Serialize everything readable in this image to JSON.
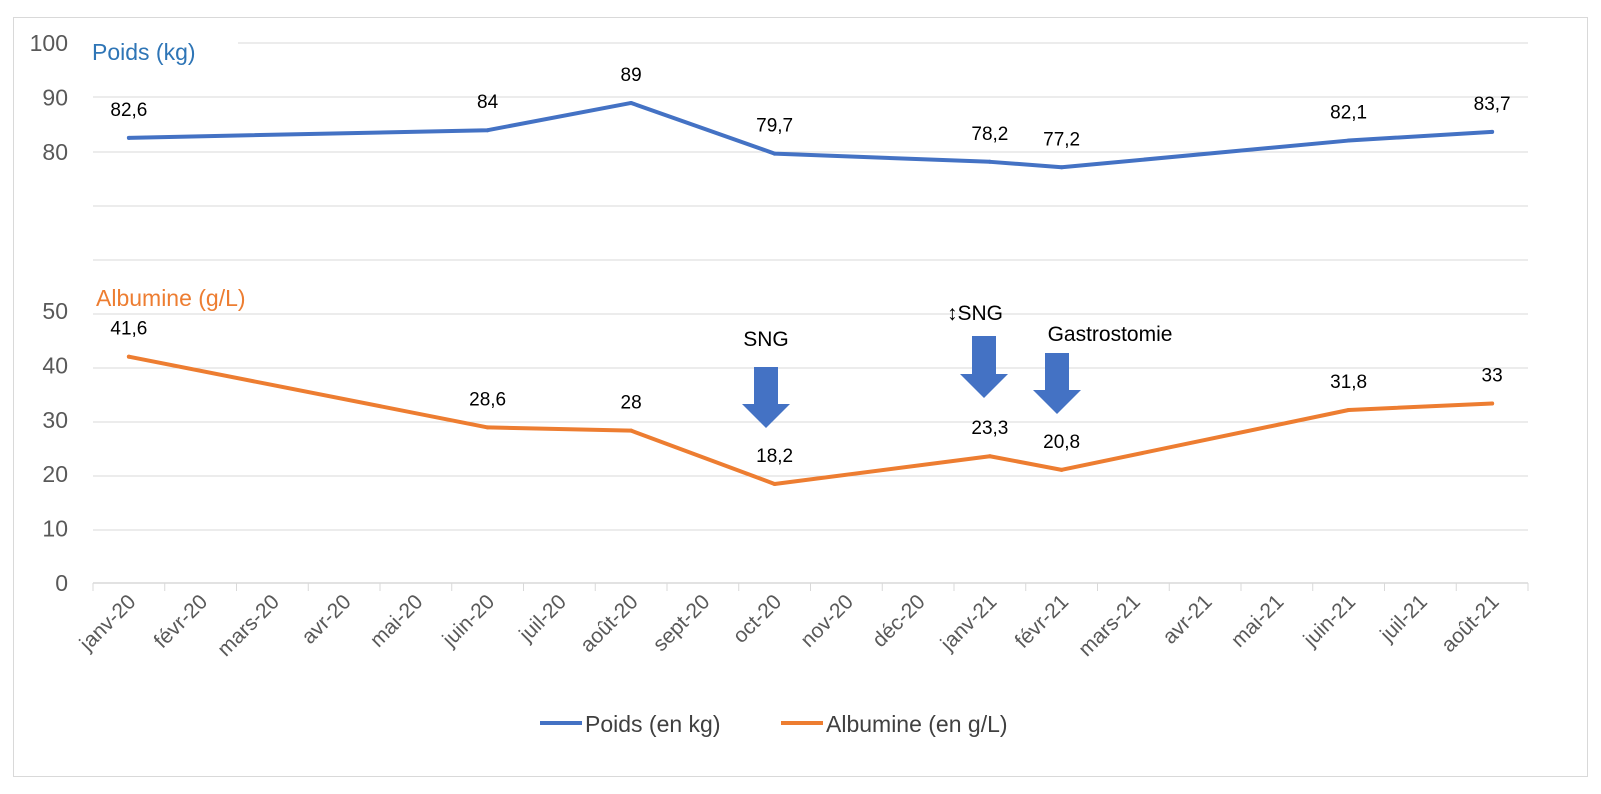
{
  "chart_data": {
    "type": "line",
    "categories": [
      "janv-20",
      "févr-20",
      "mars-20",
      "avr-20",
      "mai-20",
      "juin-20",
      "juil-20",
      "août-20",
      "sept-20",
      "oct-20",
      "nov-20",
      "déc-20",
      "janv-21",
      "févr-21",
      "mars-21",
      "avr-21",
      "mai-21",
      "juin-21",
      "juil-21",
      "août-21"
    ],
    "y_ticks": [
      0,
      10,
      20,
      30,
      40,
      50,
      80,
      90,
      100
    ],
    "series": [
      {
        "name": "Poids (en kg)",
        "axis_title": "Poids (kg)",
        "color": "#4472C4",
        "title_color": "#2E75B6",
        "points": [
          {
            "x": "janv-20",
            "value": 82.6,
            "label": "82,6"
          },
          {
            "x": "juin-20",
            "value": 84,
            "label": "84"
          },
          {
            "x": "août-20",
            "value": 89,
            "label": "89"
          },
          {
            "x": "oct-20",
            "value": 79.7,
            "label": "79,7"
          },
          {
            "x": "janv-21",
            "value": 78.2,
            "label": "78,2"
          },
          {
            "x": "févr-21",
            "value": 77.2,
            "label": "77,2"
          },
          {
            "x": "juin-21",
            "value": 82.1,
            "label": "82,1"
          },
          {
            "x": "août-21",
            "value": 83.7,
            "label": "83,7"
          }
        ]
      },
      {
        "name": "Albumine (en g/L)",
        "axis_title": "Albumine (g/L)",
        "color": "#ED7D31",
        "title_color": "#ED7D31",
        "points": [
          {
            "x": "janv-20",
            "value": 41.6,
            "label": "41,6"
          },
          {
            "x": "juin-20",
            "value": 28.6,
            "label": "28,6"
          },
          {
            "x": "août-20",
            "value": 28,
            "label": "28"
          },
          {
            "x": "oct-20",
            "value": 18.2,
            "label": "18,2"
          },
          {
            "x": "janv-21",
            "value": 23.3,
            "label": "23,3"
          },
          {
            "x": "févr-21",
            "value": 20.8,
            "label": "20,8"
          },
          {
            "x": "juin-21",
            "value": 31.8,
            "label": "31,8"
          },
          {
            "x": "août-21",
            "value": 33,
            "label": "33"
          }
        ]
      }
    ],
    "annotations": [
      {
        "text": "SNG",
        "x": "oct-20",
        "arrow_color": "#4472C4"
      },
      {
        "text": "↕SNG",
        "x": "janv-21",
        "arrow_color": "#4472C4"
      },
      {
        "text": "Gastrostomie",
        "x": "févr-21",
        "arrow_color": "#4472C4"
      }
    ],
    "legend": {
      "position": "bottom"
    }
  }
}
